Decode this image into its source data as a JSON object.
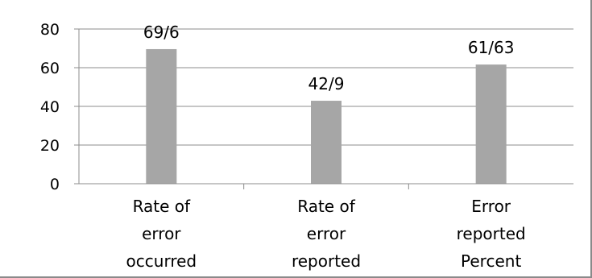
{
  "chart_data": {
    "type": "bar",
    "categories": [
      [
        "Rate of",
        "error",
        "occurred"
      ],
      [
        "Rate of",
        "error",
        "reported"
      ],
      [
        "Error",
        "reported",
        "Percent"
      ]
    ],
    "values": [
      69.6,
      42.9,
      61.63
    ],
    "data_labels": [
      "69/6",
      "42/9",
      "61/63"
    ],
    "ylim": [
      0,
      80
    ],
    "yticks": [
      0,
      20,
      40,
      60,
      80
    ],
    "grid": true,
    "legend": false,
    "colors": {
      "bar": "#a6a6a6",
      "grid": "#8c8c8c",
      "axis": "#8c8c8c"
    }
  }
}
